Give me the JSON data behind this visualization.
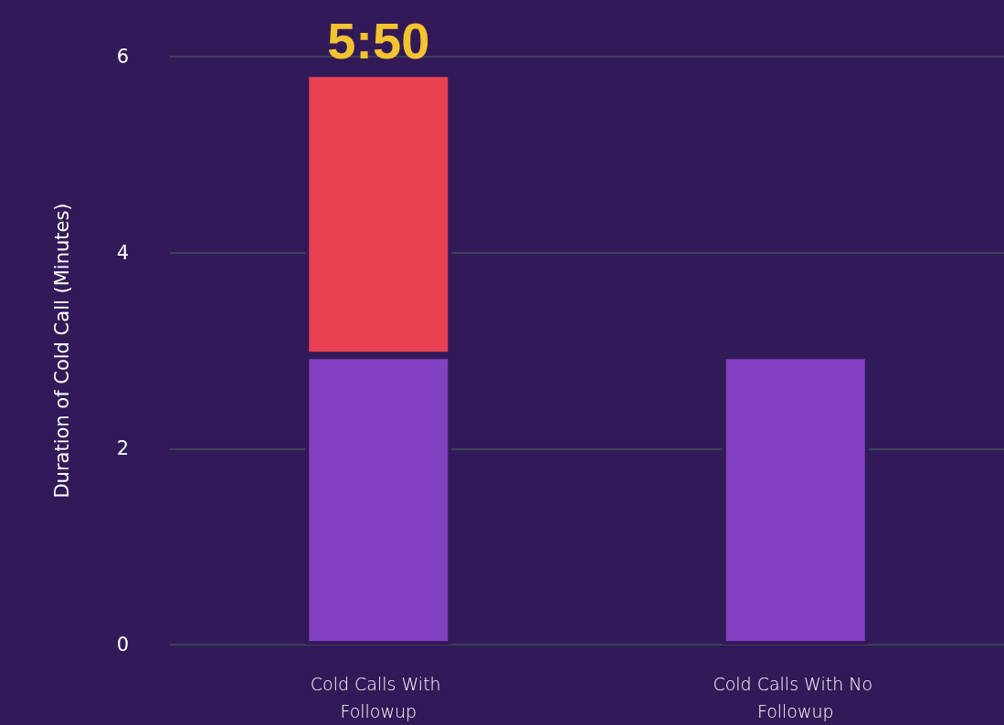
{
  "chart_data": {
    "type": "bar",
    "ylabel": "Duration of Cold Call (Minutes)",
    "categories": [
      "Cold Calls With Followup",
      "Cold Calls With No Followup"
    ],
    "stacked": true,
    "series": [
      {
        "color": "#8340c0",
        "values": [
          2.95,
          2.95
        ]
      },
      {
        "color": "#e84152",
        "values": [
          2.88,
          null
        ]
      }
    ],
    "ylim": [
      0,
      6
    ],
    "yticks": [
      0,
      2,
      4,
      6
    ],
    "grid": "y",
    "annotations": [
      {
        "text": "5:50",
        "x": "Cold Calls With Followup",
        "y": 5.83
      }
    ]
  }
}
